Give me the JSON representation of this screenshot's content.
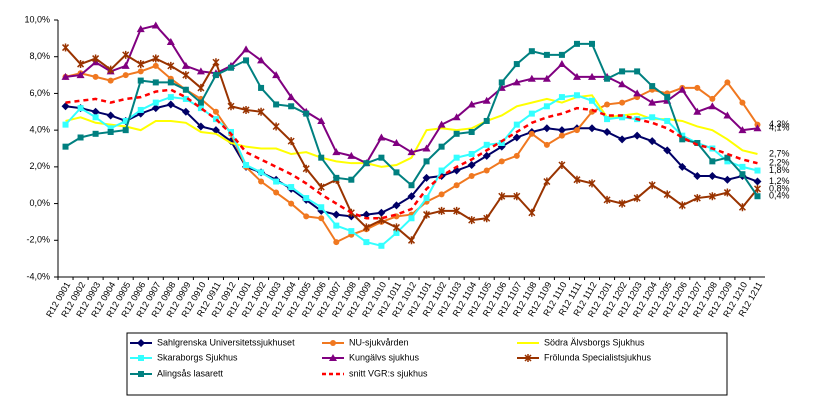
{
  "chart_data": {
    "type": "line",
    "categories": [
      "R12 0901",
      "R12 0902",
      "R12 0903",
      "R12 0904",
      "R12 0905",
      "R12 0906",
      "R12 0907",
      "R12 0908",
      "R12 0909",
      "R12 0910",
      "R12 0911",
      "R12 0912",
      "R12 1001",
      "R12 1002",
      "R12 1003",
      "R12 1004",
      "R12 1005",
      "R12 1006",
      "R12 1007",
      "R12 1008",
      "R12 1009",
      "R12 1010",
      "R12 1011",
      "R12 1012",
      "R12 1101",
      "R12 1102",
      "R12 1103",
      "R12 1104",
      "R12 1105",
      "R12 1106",
      "R12 1107",
      "R12 1108",
      "R12 1109",
      "R12 1110",
      "R12 1111",
      "R12 1112",
      "R12 1201",
      "R12 1202",
      "R12 1203",
      "R12 1204",
      "R12 1205",
      "R12 1206",
      "R12 1207",
      "R12 1208",
      "R12 1209",
      "R12 1210",
      "R12 1211"
    ],
    "ylim": [
      -4,
      10
    ],
    "yticks": [
      {
        "value": -4,
        "label": "-4,0%"
      },
      {
        "value": -2,
        "label": "-2,0%"
      },
      {
        "value": 0,
        "label": "0,0%"
      },
      {
        "value": 2,
        "label": "2,0%"
      },
      {
        "value": 4,
        "label": "4,0%"
      },
      {
        "value": 6,
        "label": "6,0%"
      },
      {
        "value": 8,
        "label": "8,0%"
      },
      {
        "value": 10,
        "label": "10,0%"
      }
    ],
    "grid": false,
    "series": [
      {
        "name": "Sahlgrenska Universitetssjukhuset",
        "color": "#000066",
        "marker": "diamond",
        "values": [
          5.3,
          5.2,
          5.0,
          4.8,
          4.5,
          4.9,
          5.2,
          5.4,
          5.0,
          4.2,
          4.0,
          3.4,
          2.0,
          1.7,
          1.3,
          0.8,
          0.2,
          -0.4,
          -0.6,
          -0.7,
          -0.6,
          -0.5,
          -0.1,
          0.4,
          1.4,
          1.5,
          1.8,
          2.1,
          2.6,
          3.1,
          3.6,
          3.9,
          4.1,
          4.0,
          4.1,
          4.1,
          3.9,
          3.5,
          3.7,
          3.4,
          2.9,
          2.0,
          1.5,
          1.5,
          1.3,
          1.5,
          1.2
        ],
        "value_labels": [
          null,
          null,
          null,
          null,
          null,
          null,
          null,
          null,
          null,
          null,
          null,
          null,
          null,
          null,
          null,
          null,
          null,
          null,
          null,
          null,
          null,
          null,
          null,
          null,
          null,
          null,
          null,
          null,
          null,
          null,
          null,
          null,
          null,
          null,
          null,
          null,
          null,
          null,
          null,
          null,
          null,
          null,
          null,
          null,
          null,
          null,
          "1,2%"
        ]
      },
      {
        "name": "NU-sjukvården",
        "color": "#f07820",
        "marker": "circle",
        "values": [
          6.9,
          7.1,
          6.9,
          6.7,
          7.0,
          7.2,
          7.5,
          6.8,
          6.2,
          5.7,
          5.0,
          3.8,
          2.0,
          1.2,
          0.6,
          0.0,
          -0.7,
          -0.8,
          -2.1,
          -1.7,
          -1.4,
          -1.0,
          -0.7,
          -0.6,
          0.1,
          0.5,
          1.0,
          1.5,
          1.8,
          2.3,
          2.6,
          3.8,
          3.2,
          3.7,
          4.0,
          5.0,
          5.4,
          5.5,
          5.8,
          6.2,
          6.0,
          6.3,
          6.3,
          5.7,
          6.6,
          5.5,
          4.3
        ],
        "value_labels": [
          null,
          null,
          null,
          null,
          null,
          null,
          null,
          null,
          null,
          null,
          null,
          null,
          null,
          null,
          null,
          null,
          null,
          null,
          null,
          null,
          null,
          null,
          null,
          null,
          null,
          null,
          null,
          null,
          null,
          null,
          null,
          null,
          null,
          null,
          null,
          null,
          null,
          null,
          null,
          null,
          null,
          null,
          null,
          null,
          null,
          null,
          "4,3%"
        ]
      },
      {
        "name": "Södra Älvsborgs Sjukhus",
        "color": "#ffff00",
        "marker": "none",
        "values": [
          4.5,
          4.7,
          4.4,
          4.3,
          4.2,
          4.0,
          4.5,
          4.5,
          4.4,
          3.9,
          3.8,
          3.3,
          3.1,
          3.0,
          3.0,
          2.7,
          2.8,
          2.5,
          2.3,
          2.2,
          2.2,
          2.0,
          2.1,
          2.5,
          4.0,
          4.1,
          4.0,
          4.1,
          4.5,
          4.8,
          5.3,
          5.5,
          5.7,
          5.5,
          5.8,
          5.9,
          4.7,
          4.8,
          4.9,
          4.6,
          4.6,
          4.5,
          4.2,
          4.0,
          3.5,
          2.9,
          2.7
        ],
        "value_labels": [
          null,
          null,
          null,
          null,
          null,
          null,
          null,
          null,
          null,
          null,
          null,
          null,
          null,
          null,
          null,
          null,
          null,
          null,
          null,
          null,
          null,
          null,
          null,
          null,
          null,
          null,
          null,
          null,
          null,
          null,
          null,
          null,
          null,
          null,
          null,
          null,
          null,
          null,
          null,
          null,
          null,
          null,
          null,
          null,
          null,
          null,
          "2,7%"
        ]
      },
      {
        "name": "Skaraborgs Sjukhus",
        "color": "#33ffff",
        "marker": "square",
        "values": [
          4.3,
          5.2,
          4.7,
          4.1,
          4.5,
          5.1,
          5.5,
          5.8,
          5.7,
          5.2,
          4.6,
          3.9,
          2.1,
          1.7,
          1.2,
          0.9,
          0.3,
          -0.2,
          -1.2,
          -1.5,
          -2.1,
          -2.3,
          -1.6,
          -0.8,
          0.3,
          1.8,
          2.5,
          2.7,
          3.2,
          3.3,
          4.3,
          4.9,
          5.3,
          5.8,
          5.9,
          5.6,
          4.6,
          4.7,
          4.6,
          4.7,
          4.5,
          3.7,
          3.3,
          3.0,
          2.3,
          2.0,
          1.8
        ],
        "value_labels": [
          null,
          null,
          null,
          null,
          null,
          null,
          null,
          null,
          null,
          null,
          null,
          null,
          null,
          null,
          null,
          null,
          null,
          null,
          null,
          null,
          null,
          null,
          null,
          null,
          null,
          null,
          null,
          null,
          null,
          null,
          null,
          null,
          null,
          null,
          null,
          null,
          null,
          null,
          null,
          null,
          null,
          null,
          null,
          null,
          null,
          null,
          "1,8%"
        ]
      },
      {
        "name": "Kungälvs sjukhus",
        "color": "#800080",
        "marker": "triangle",
        "values": [
          6.9,
          7.0,
          7.7,
          7.2,
          7.5,
          9.5,
          9.7,
          8.8,
          7.5,
          7.2,
          7.1,
          7.5,
          8.4,
          7.8,
          7.0,
          5.8,
          5.0,
          4.5,
          2.8,
          2.6,
          2.2,
          3.6,
          3.3,
          2.8,
          3.0,
          4.3,
          4.7,
          5.4,
          5.6,
          6.3,
          6.6,
          6.8,
          6.8,
          7.6,
          6.9,
          6.9,
          6.9,
          6.5,
          6.0,
          5.5,
          5.6,
          6.2,
          5.0,
          5.3,
          4.8,
          4.0,
          4.1
        ],
        "value_labels": [
          null,
          null,
          null,
          null,
          null,
          null,
          null,
          null,
          null,
          null,
          null,
          null,
          null,
          null,
          null,
          null,
          null,
          null,
          null,
          null,
          null,
          null,
          null,
          null,
          null,
          null,
          null,
          null,
          null,
          null,
          null,
          null,
          null,
          null,
          null,
          null,
          null,
          null,
          null,
          null,
          null,
          null,
          null,
          null,
          null,
          null,
          "4,1%"
        ]
      },
      {
        "name": "Frölunda Specialistsjukhus",
        "color": "#993300",
        "marker": "star",
        "values": [
          8.5,
          7.6,
          7.9,
          7.3,
          8.1,
          7.6,
          7.9,
          7.5,
          7.0,
          6.3,
          7.7,
          5.3,
          5.1,
          5.0,
          4.2,
          3.4,
          1.9,
          0.9,
          1.3,
          -0.5,
          -1.3,
          -0.9,
          -1.3,
          -2.0,
          -0.6,
          -0.4,
          -0.4,
          -0.9,
          -0.8,
          0.4,
          0.4,
          -0.5,
          1.2,
          2.1,
          1.3,
          1.1,
          0.2,
          0.0,
          0.3,
          1.0,
          0.5,
          -0.1,
          0.3,
          0.4,
          0.6,
          -0.2,
          0.8
        ],
        "value_labels": [
          null,
          null,
          null,
          null,
          null,
          null,
          null,
          null,
          null,
          null,
          null,
          null,
          null,
          null,
          null,
          null,
          null,
          null,
          null,
          null,
          null,
          null,
          null,
          null,
          null,
          null,
          null,
          null,
          null,
          null,
          null,
          null,
          null,
          null,
          null,
          null,
          null,
          null,
          null,
          null,
          null,
          null,
          null,
          null,
          null,
          null,
          "0,8%"
        ]
      },
      {
        "name": "Alingsås lasarett",
        "color": "#008080",
        "marker": "square",
        "values": [
          3.1,
          3.6,
          3.8,
          3.9,
          4.0,
          6.7,
          6.6,
          6.6,
          6.2,
          5.5,
          7.0,
          7.4,
          7.8,
          6.3,
          5.4,
          5.3,
          4.9,
          2.5,
          1.4,
          1.3,
          2.2,
          2.5,
          1.7,
          1.0,
          2.3,
          3.1,
          3.8,
          3.9,
          4.5,
          6.6,
          7.6,
          8.3,
          8.1,
          8.1,
          8.7,
          8.7,
          6.8,
          7.2,
          7.2,
          6.4,
          5.8,
          3.5,
          3.3,
          2.3,
          2.5,
          1.6,
          0.4
        ],
        "value_labels": [
          null,
          null,
          null,
          null,
          null,
          null,
          null,
          null,
          null,
          null,
          null,
          null,
          null,
          null,
          null,
          null,
          null,
          null,
          null,
          null,
          null,
          null,
          null,
          null,
          null,
          null,
          null,
          null,
          null,
          null,
          null,
          null,
          null,
          null,
          null,
          null,
          null,
          null,
          null,
          null,
          null,
          null,
          null,
          null,
          null,
          null,
          "0,4%"
        ]
      },
      {
        "name": "snitt VGR:s sjukhus",
        "color": "#ff0000",
        "marker": "none",
        "dashed": true,
        "values": [
          5.5,
          5.6,
          5.7,
          5.5,
          5.7,
          5.8,
          6.1,
          6.2,
          5.8,
          5.2,
          4.6,
          3.8,
          2.8,
          2.4,
          2.0,
          1.6,
          1.1,
          0.5,
          0.0,
          -0.5,
          -0.8,
          -0.8,
          -0.6,
          -0.3,
          0.8,
          1.5,
          2.0,
          2.4,
          2.9,
          3.4,
          3.9,
          4.4,
          4.7,
          4.9,
          5.2,
          5.1,
          4.8,
          4.8,
          4.6,
          4.4,
          4.1,
          3.6,
          3.2,
          3.0,
          2.7,
          2.4,
          2.2
        ],
        "value_labels": [
          null,
          null,
          null,
          null,
          null,
          null,
          null,
          null,
          null,
          null,
          null,
          null,
          null,
          null,
          null,
          null,
          null,
          null,
          null,
          null,
          null,
          null,
          null,
          null,
          null,
          null,
          null,
          null,
          null,
          null,
          null,
          null,
          null,
          null,
          null,
          null,
          null,
          null,
          null,
          null,
          null,
          null,
          null,
          null,
          null,
          null,
          "2,2%"
        ]
      }
    ]
  }
}
